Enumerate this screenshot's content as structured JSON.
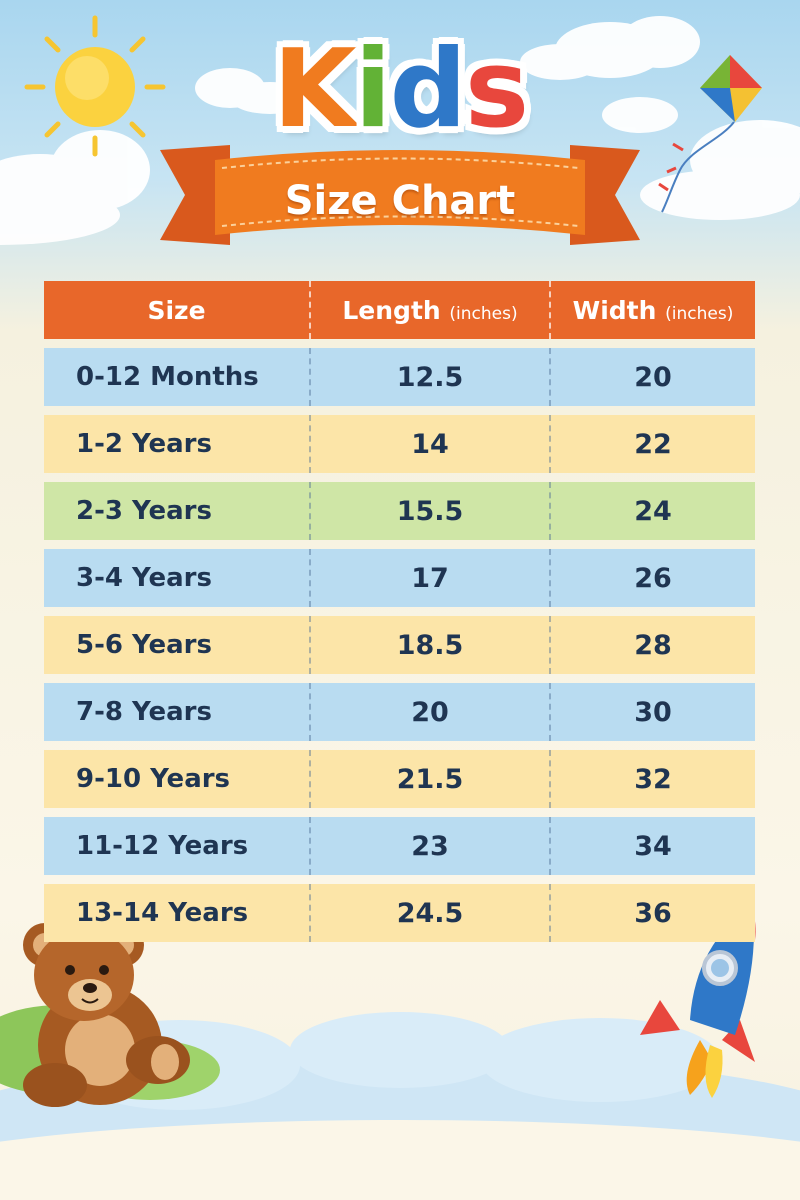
{
  "header": {
    "title_letters": [
      {
        "char": "K",
        "color": "#f07b1f"
      },
      {
        "char": "i",
        "color": "#62b236"
      },
      {
        "char": "d",
        "color": "#2f78c8"
      },
      {
        "char": "s",
        "color": "#e8473d"
      }
    ],
    "subtitle": "Size Chart"
  },
  "table": {
    "columns": [
      {
        "label": "Size",
        "unit": ""
      },
      {
        "label": "Length",
        "unit": "(inches)"
      },
      {
        "label": "Width",
        "unit": "(inches)"
      }
    ],
    "rows": [
      {
        "size": "0-12 Months",
        "length": "12.5",
        "width": "20",
        "color": "blue"
      },
      {
        "size": "1-2 Years",
        "length": "14",
        "width": "22",
        "color": "yellow"
      },
      {
        "size": "2-3 Years",
        "length": "15.5",
        "width": "24",
        "color": "green"
      },
      {
        "size": "3-4 Years",
        "length": "17",
        "width": "26",
        "color": "blue"
      },
      {
        "size": "5-6 Years",
        "length": "18.5",
        "width": "28",
        "color": "yellow"
      },
      {
        "size": "7-8 Years",
        "length": "20",
        "width": "30",
        "color": "blue"
      },
      {
        "size": "9-10 Years",
        "length": "21.5",
        "width": "32",
        "color": "yellow"
      },
      {
        "size": "11-12 Years",
        "length": "23",
        "width": "34",
        "color": "blue"
      },
      {
        "size": "13-14 Years",
        "length": "24.5",
        "width": "36",
        "color": "yellow"
      }
    ]
  },
  "colors": {
    "header_orange": "#e8672a",
    "row_blue": "#b9dcf1",
    "row_yellow": "#fce5a8",
    "row_green": "#cfe6a6",
    "text_navy": "#1f3552"
  },
  "decorations": [
    "sun-icon",
    "cloud-icon",
    "kite-icon",
    "teddy-bear-icon",
    "rocket-icon",
    "ribbon-banner"
  ]
}
